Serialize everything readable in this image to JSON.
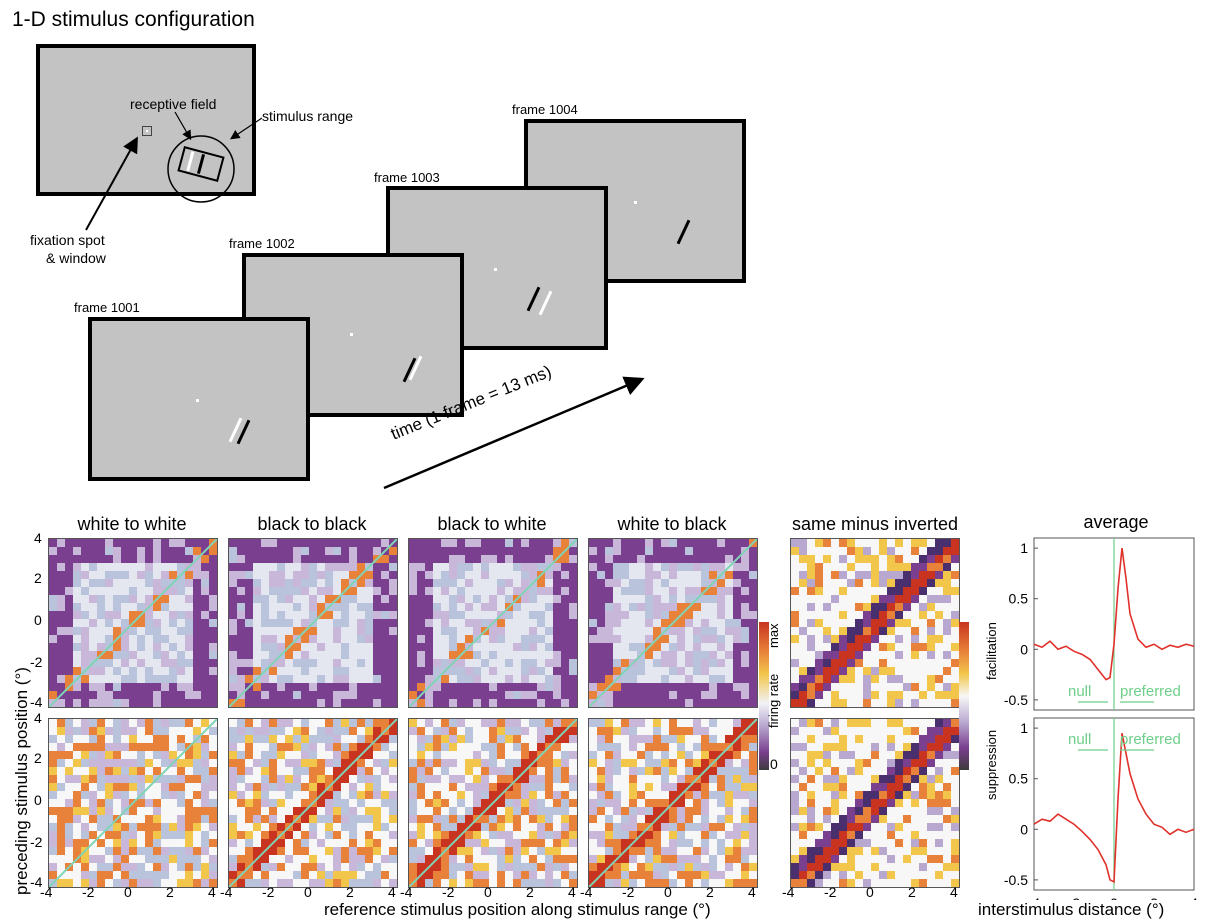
{
  "figure": {
    "title": "1-D stimulus configuration"
  },
  "schematic": {
    "labels": {
      "receptive_field": "receptive field",
      "stimulus_range": "stimulus range",
      "fixation_line1": "fixation spot",
      "fixation_line2": "& window"
    },
    "frames": [
      "frame 1001",
      "frame 1002",
      "frame 1003",
      "frame 1004"
    ],
    "time_label": "time (1 frame = 13 ms)"
  },
  "maps": {
    "column_titles": [
      "white to white",
      "black to black",
      "black to white",
      "white to black",
      "same minus inverted"
    ],
    "y_axis_label": "preceding stimulus position (°)",
    "x_axis_label": "reference stimulus position along stimulus range (°)",
    "ticks": [
      "-4",
      "-2",
      "0",
      "2",
      "4"
    ],
    "colorbar_firing": {
      "label": "firing rate",
      "max": "max",
      "min": "0"
    },
    "colorbar_diff": {
      "top": "facilitation",
      "bottom": "suppression"
    },
    "colors": {
      "purple": "#7a3f8e",
      "white": "#f2f2f7",
      "orange": "#e8823a",
      "red": "#c8341f",
      "diagonal": "#7fd4b6"
    }
  },
  "average": {
    "title": "average",
    "x_axis_label": "interstimulus distance (°)",
    "x_ticks": [
      "-4",
      "-2",
      "0",
      "2",
      "4"
    ],
    "y_ticks_top": [
      "1",
      "0.5",
      "0",
      "-0.5"
    ],
    "y_ticks_bottom": [
      "1",
      "0.5",
      "0",
      "-0.5"
    ],
    "null_label": "null",
    "preferred_label": "preferred",
    "line_color": "#e0312b",
    "guide_color": "#6fcf8a"
  },
  "chart_data": [
    {
      "type": "line",
      "title": "average",
      "xlabel": "interstimulus distance (°)",
      "ylabel": "",
      "xlim": [
        -4,
        4
      ],
      "ylim": [
        -0.6,
        1.1
      ],
      "x": [
        -4,
        -3.6,
        -3.2,
        -2.8,
        -2.4,
        -2,
        -1.6,
        -1.2,
        -0.8,
        -0.4,
        -0.2,
        0,
        0.2,
        0.4,
        0.6,
        0.8,
        1.2,
        1.6,
        2,
        2.4,
        2.8,
        3.2,
        3.6,
        4
      ],
      "series": [
        {
          "values": [
            0.05,
            0.02,
            0.08,
            0.0,
            0.03,
            -0.02,
            -0.05,
            -0.1,
            -0.2,
            -0.3,
            -0.28,
            0.05,
            0.6,
            1.0,
            0.7,
            0.35,
            0.1,
            0.02,
            0.05,
            0.0,
            0.04,
            0.02,
            0.05,
            0.03
          ]
        }
      ]
    },
    {
      "type": "line",
      "title": "",
      "xlabel": "interstimulus distance (°)",
      "ylabel": "",
      "xlim": [
        -4,
        4
      ],
      "ylim": [
        -0.6,
        1.1
      ],
      "x": [
        -4,
        -3.6,
        -3.2,
        -2.8,
        -2.4,
        -2,
        -1.6,
        -1.2,
        -0.8,
        -0.4,
        -0.2,
        0,
        0.2,
        0.4,
        0.6,
        0.8,
        1.2,
        1.6,
        2,
        2.4,
        2.8,
        3.2,
        3.6,
        4
      ],
      "series": [
        {
          "values": [
            0.05,
            0.1,
            0.08,
            0.15,
            0.1,
            0.05,
            -0.02,
            -0.1,
            -0.2,
            -0.35,
            -0.5,
            -0.52,
            0.3,
            0.95,
            0.75,
            0.55,
            0.3,
            0.15,
            0.05,
            0.02,
            -0.05,
            0.0,
            -0.03,
            0.0
          ]
        }
      ]
    }
  ]
}
